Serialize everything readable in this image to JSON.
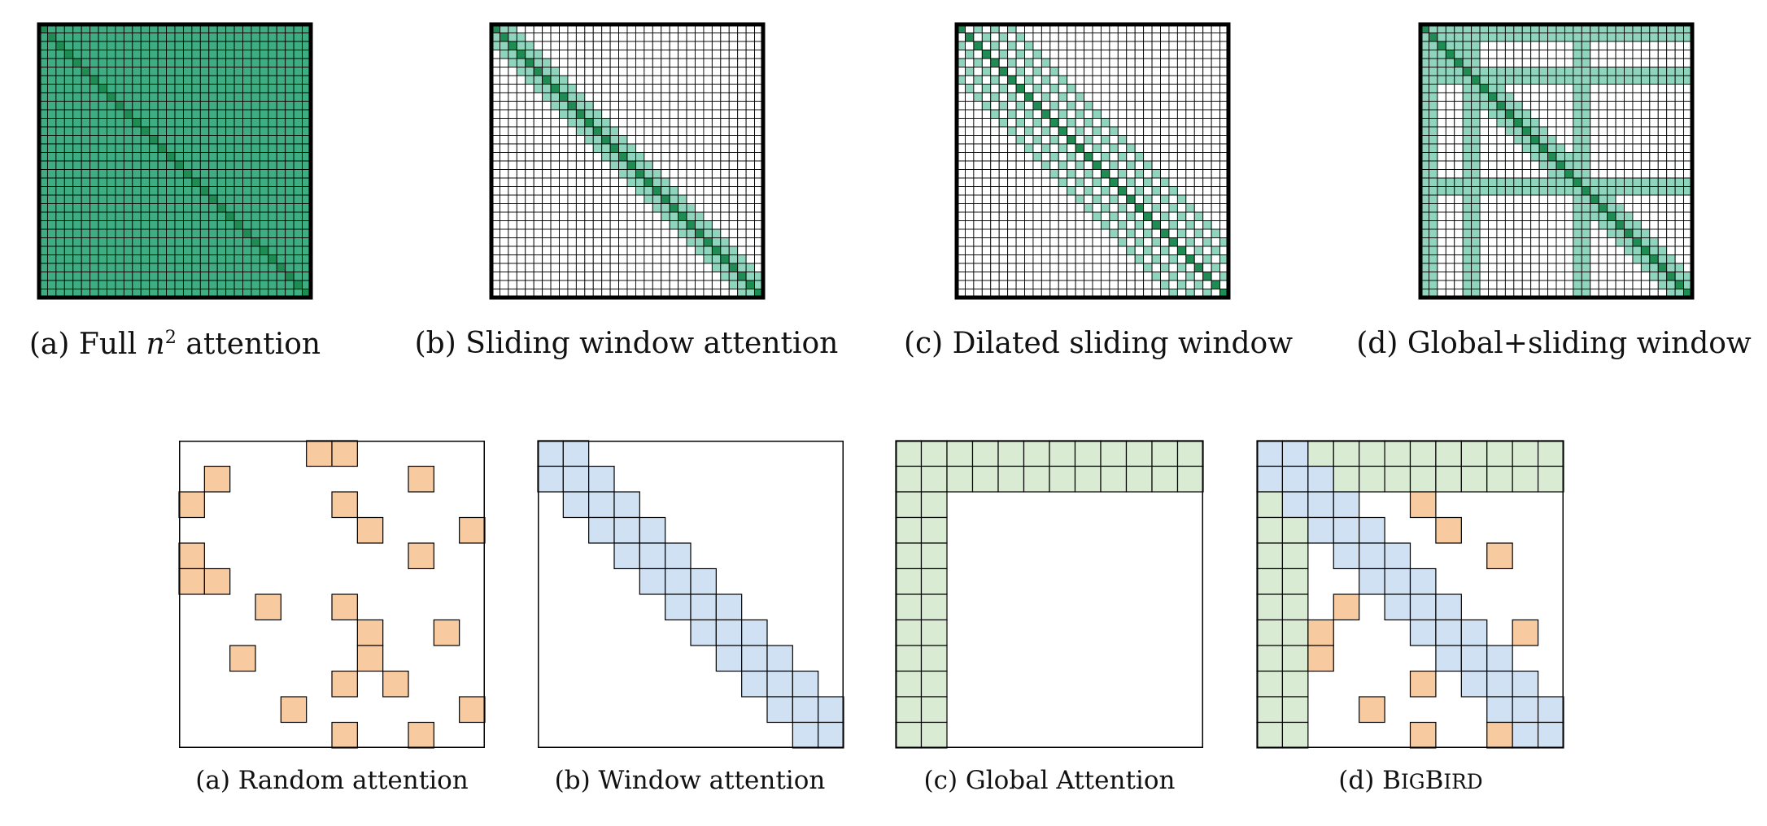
{
  "colors": {
    "green_dark": "#1f8c54",
    "green_main": "#3eae82",
    "green_light": "#8fd5bd",
    "orange": "#f8caa0",
    "blue": "#cfe1f2",
    "green_pale": "#d9ecd3",
    "grid_line": "#000000"
  },
  "top_row": {
    "full": {
      "caption_prefix": "(a) Full ",
      "caption_var": "n",
      "caption_exp": "2",
      "caption_suffix": " attention",
      "grid": 32
    },
    "sliding": {
      "caption": "(b) Sliding window attention",
      "grid": 32,
      "window_halfwidth": 2
    },
    "dilated": {
      "caption": "(c) Dilated sliding window",
      "grid": 32,
      "dilation": 2,
      "window_halfwidth": 6
    },
    "global_sliding": {
      "caption": "(d) Global+sliding window",
      "grid": 32,
      "window_halfwidth": 2,
      "global_tokens": [
        0,
        1,
        5,
        6,
        18,
        19
      ]
    }
  },
  "bottom_row": {
    "random": {
      "caption": "(a) Random attention",
      "grid": 12,
      "cells": [
        [
          0,
          5
        ],
        [
          0,
          6
        ],
        [
          1,
          1
        ],
        [
          1,
          9
        ],
        [
          2,
          0
        ],
        [
          2,
          6
        ],
        [
          3,
          7
        ],
        [
          3,
          11
        ],
        [
          4,
          0
        ],
        [
          4,
          9
        ],
        [
          5,
          0
        ],
        [
          5,
          1
        ],
        [
          6,
          3
        ],
        [
          6,
          6
        ],
        [
          7,
          7
        ],
        [
          7,
          10
        ],
        [
          8,
          2
        ],
        [
          8,
          7
        ],
        [
          9,
          6
        ],
        [
          9,
          8
        ],
        [
          10,
          4
        ],
        [
          10,
          11
        ],
        [
          11,
          6
        ],
        [
          11,
          9
        ]
      ]
    },
    "window": {
      "caption": "(b) Window attention",
      "grid": 12,
      "window_halfwidth": 1
    },
    "global": {
      "caption": "(c) Global Attention",
      "grid": 12,
      "global_count": 2
    },
    "bigbird": {
      "caption_prefix": "(d) B",
      "caption_sc1": "IG",
      "caption_mid": "B",
      "caption_sc2": "IRD",
      "grid": 12,
      "global_count": 2,
      "window_halfwidth": 1,
      "random_cells": [
        [
          2,
          6
        ],
        [
          3,
          7
        ],
        [
          4,
          9
        ],
        [
          6,
          3
        ],
        [
          7,
          2
        ],
        [
          7,
          10
        ],
        [
          8,
          2
        ],
        [
          9,
          6
        ],
        [
          10,
          4
        ],
        [
          11,
          6
        ],
        [
          11,
          9
        ]
      ]
    }
  }
}
